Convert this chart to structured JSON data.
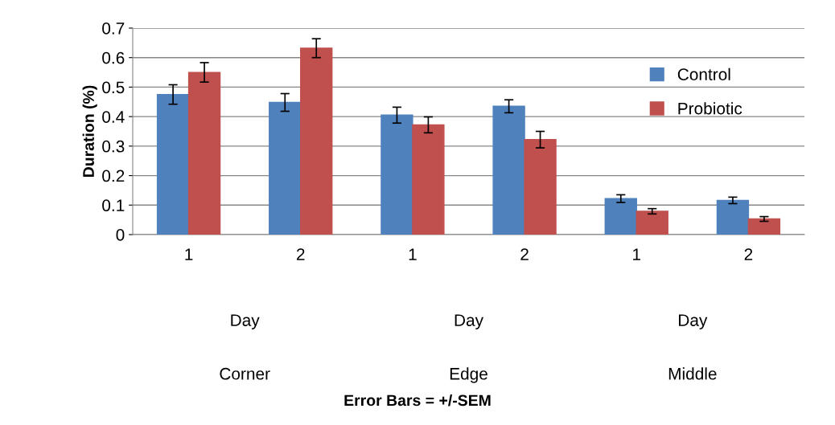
{
  "chart_data": {
    "type": "bar",
    "ylabel": "Duration (%)",
    "categories": [
      "1",
      "2",
      "1",
      "2",
      "1",
      "2"
    ],
    "series": [
      {
        "name": "Control",
        "color": "#4f81bd",
        "values": [
          0.475,
          0.448,
          0.405,
          0.435,
          0.122,
          0.116
        ],
        "errors": [
          0.033,
          0.03,
          0.027,
          0.022,
          0.013,
          0.011
        ]
      },
      {
        "name": "Probiotic",
        "color": "#c0504d",
        "values": [
          0.55,
          0.632,
          0.372,
          0.322,
          0.079,
          0.053
        ],
        "errors": [
          0.033,
          0.032,
          0.027,
          0.028,
          0.009,
          0.008
        ]
      }
    ],
    "ylim": [
      0,
      0.7
    ],
    "yticks": [
      0,
      0.1,
      0.2,
      0.3,
      0.4,
      0.5,
      0.6,
      0.7
    ],
    "grid": "y",
    "legend": "top right",
    "annotations": [
      "Day",
      "Day",
      "Day",
      "Corner",
      "Edge",
      "Middle",
      "Error Bars = +/-SEM"
    ]
  }
}
